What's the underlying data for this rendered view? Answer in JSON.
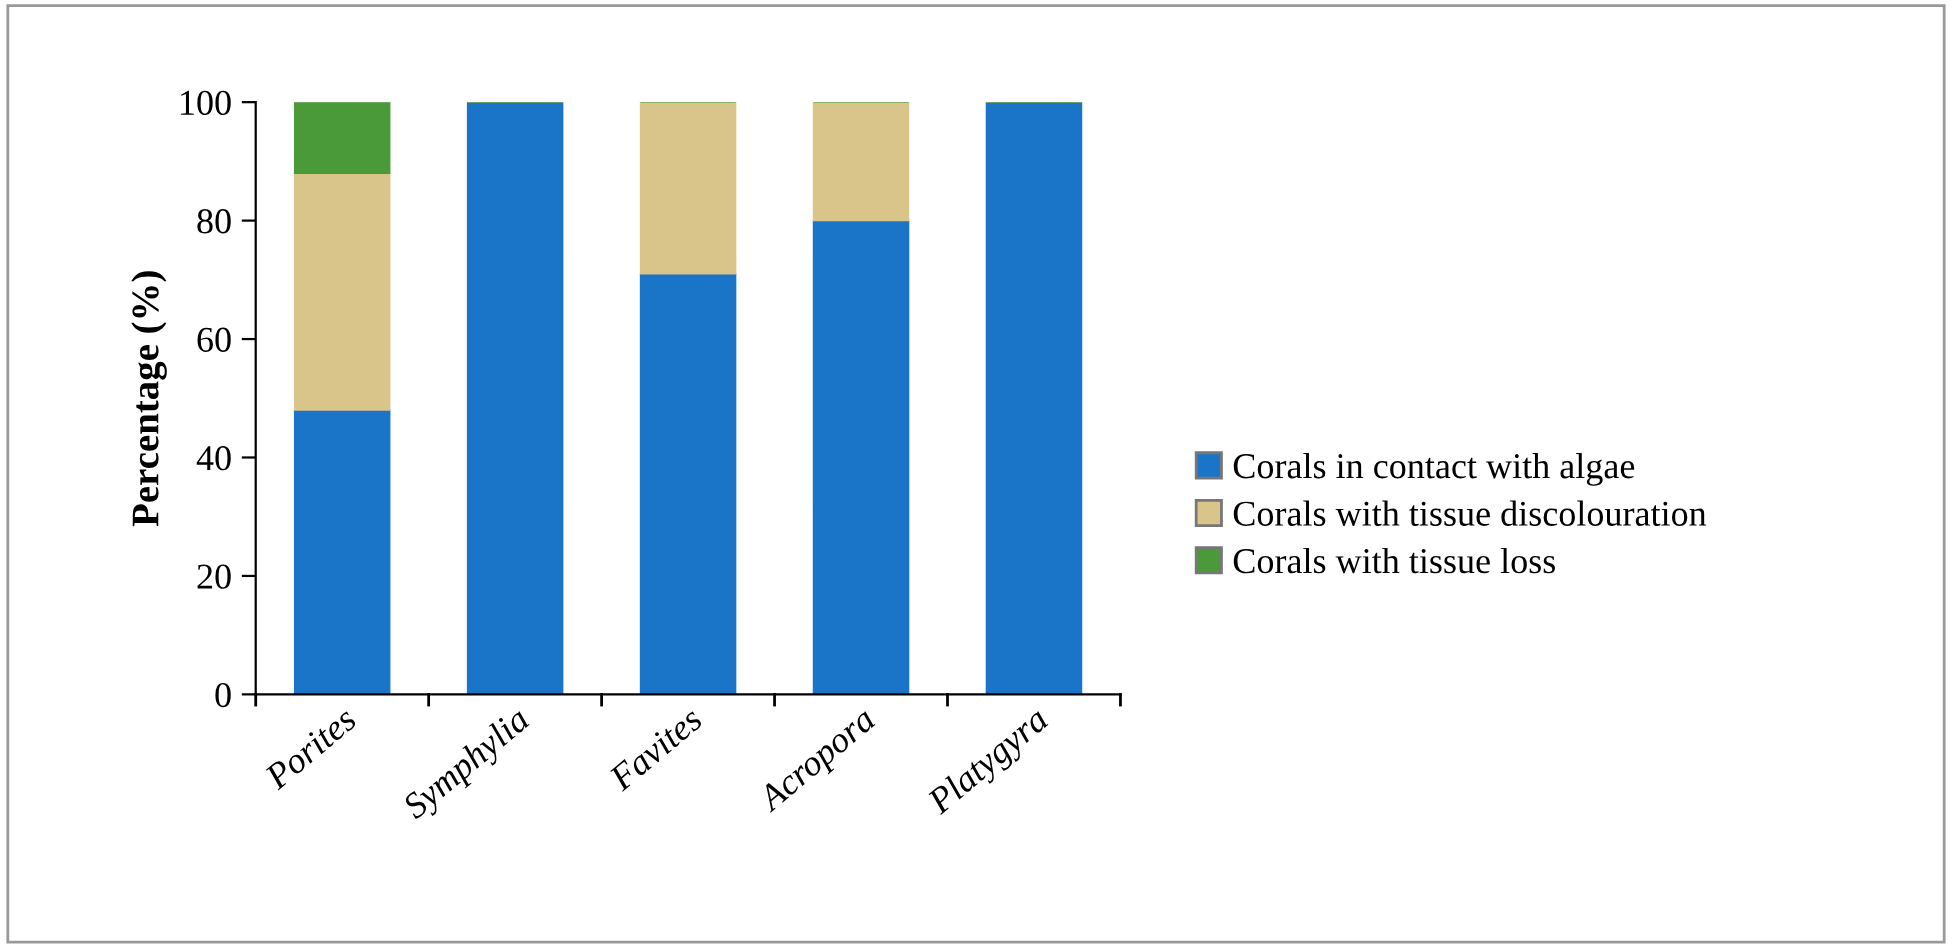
{
  "chart_data": {
    "type": "bar",
    "stacked": true,
    "ylabel": "Percentage (%)",
    "categories": [
      "Porites",
      "Symphylia",
      "Favites",
      "Acropora",
      "Platygyra"
    ],
    "series": [
      {
        "name": "Corals in contact with algae",
        "color": "#1a75c9",
        "values": [
          48,
          100,
          71,
          80,
          100
        ]
      },
      {
        "name": "Corals with tissue discolouration",
        "color": "#d9c48a",
        "values": [
          40,
          0,
          29,
          20,
          0
        ]
      },
      {
        "name": "Corals with tissue loss",
        "color": "#4a9a3a",
        "values": [
          12,
          0,
          0,
          0,
          0
        ]
      }
    ],
    "ylim": [
      0,
      100
    ],
    "yticks": [
      0,
      20,
      40,
      60,
      80,
      100
    ],
    "grid": false,
    "legend": "right"
  }
}
